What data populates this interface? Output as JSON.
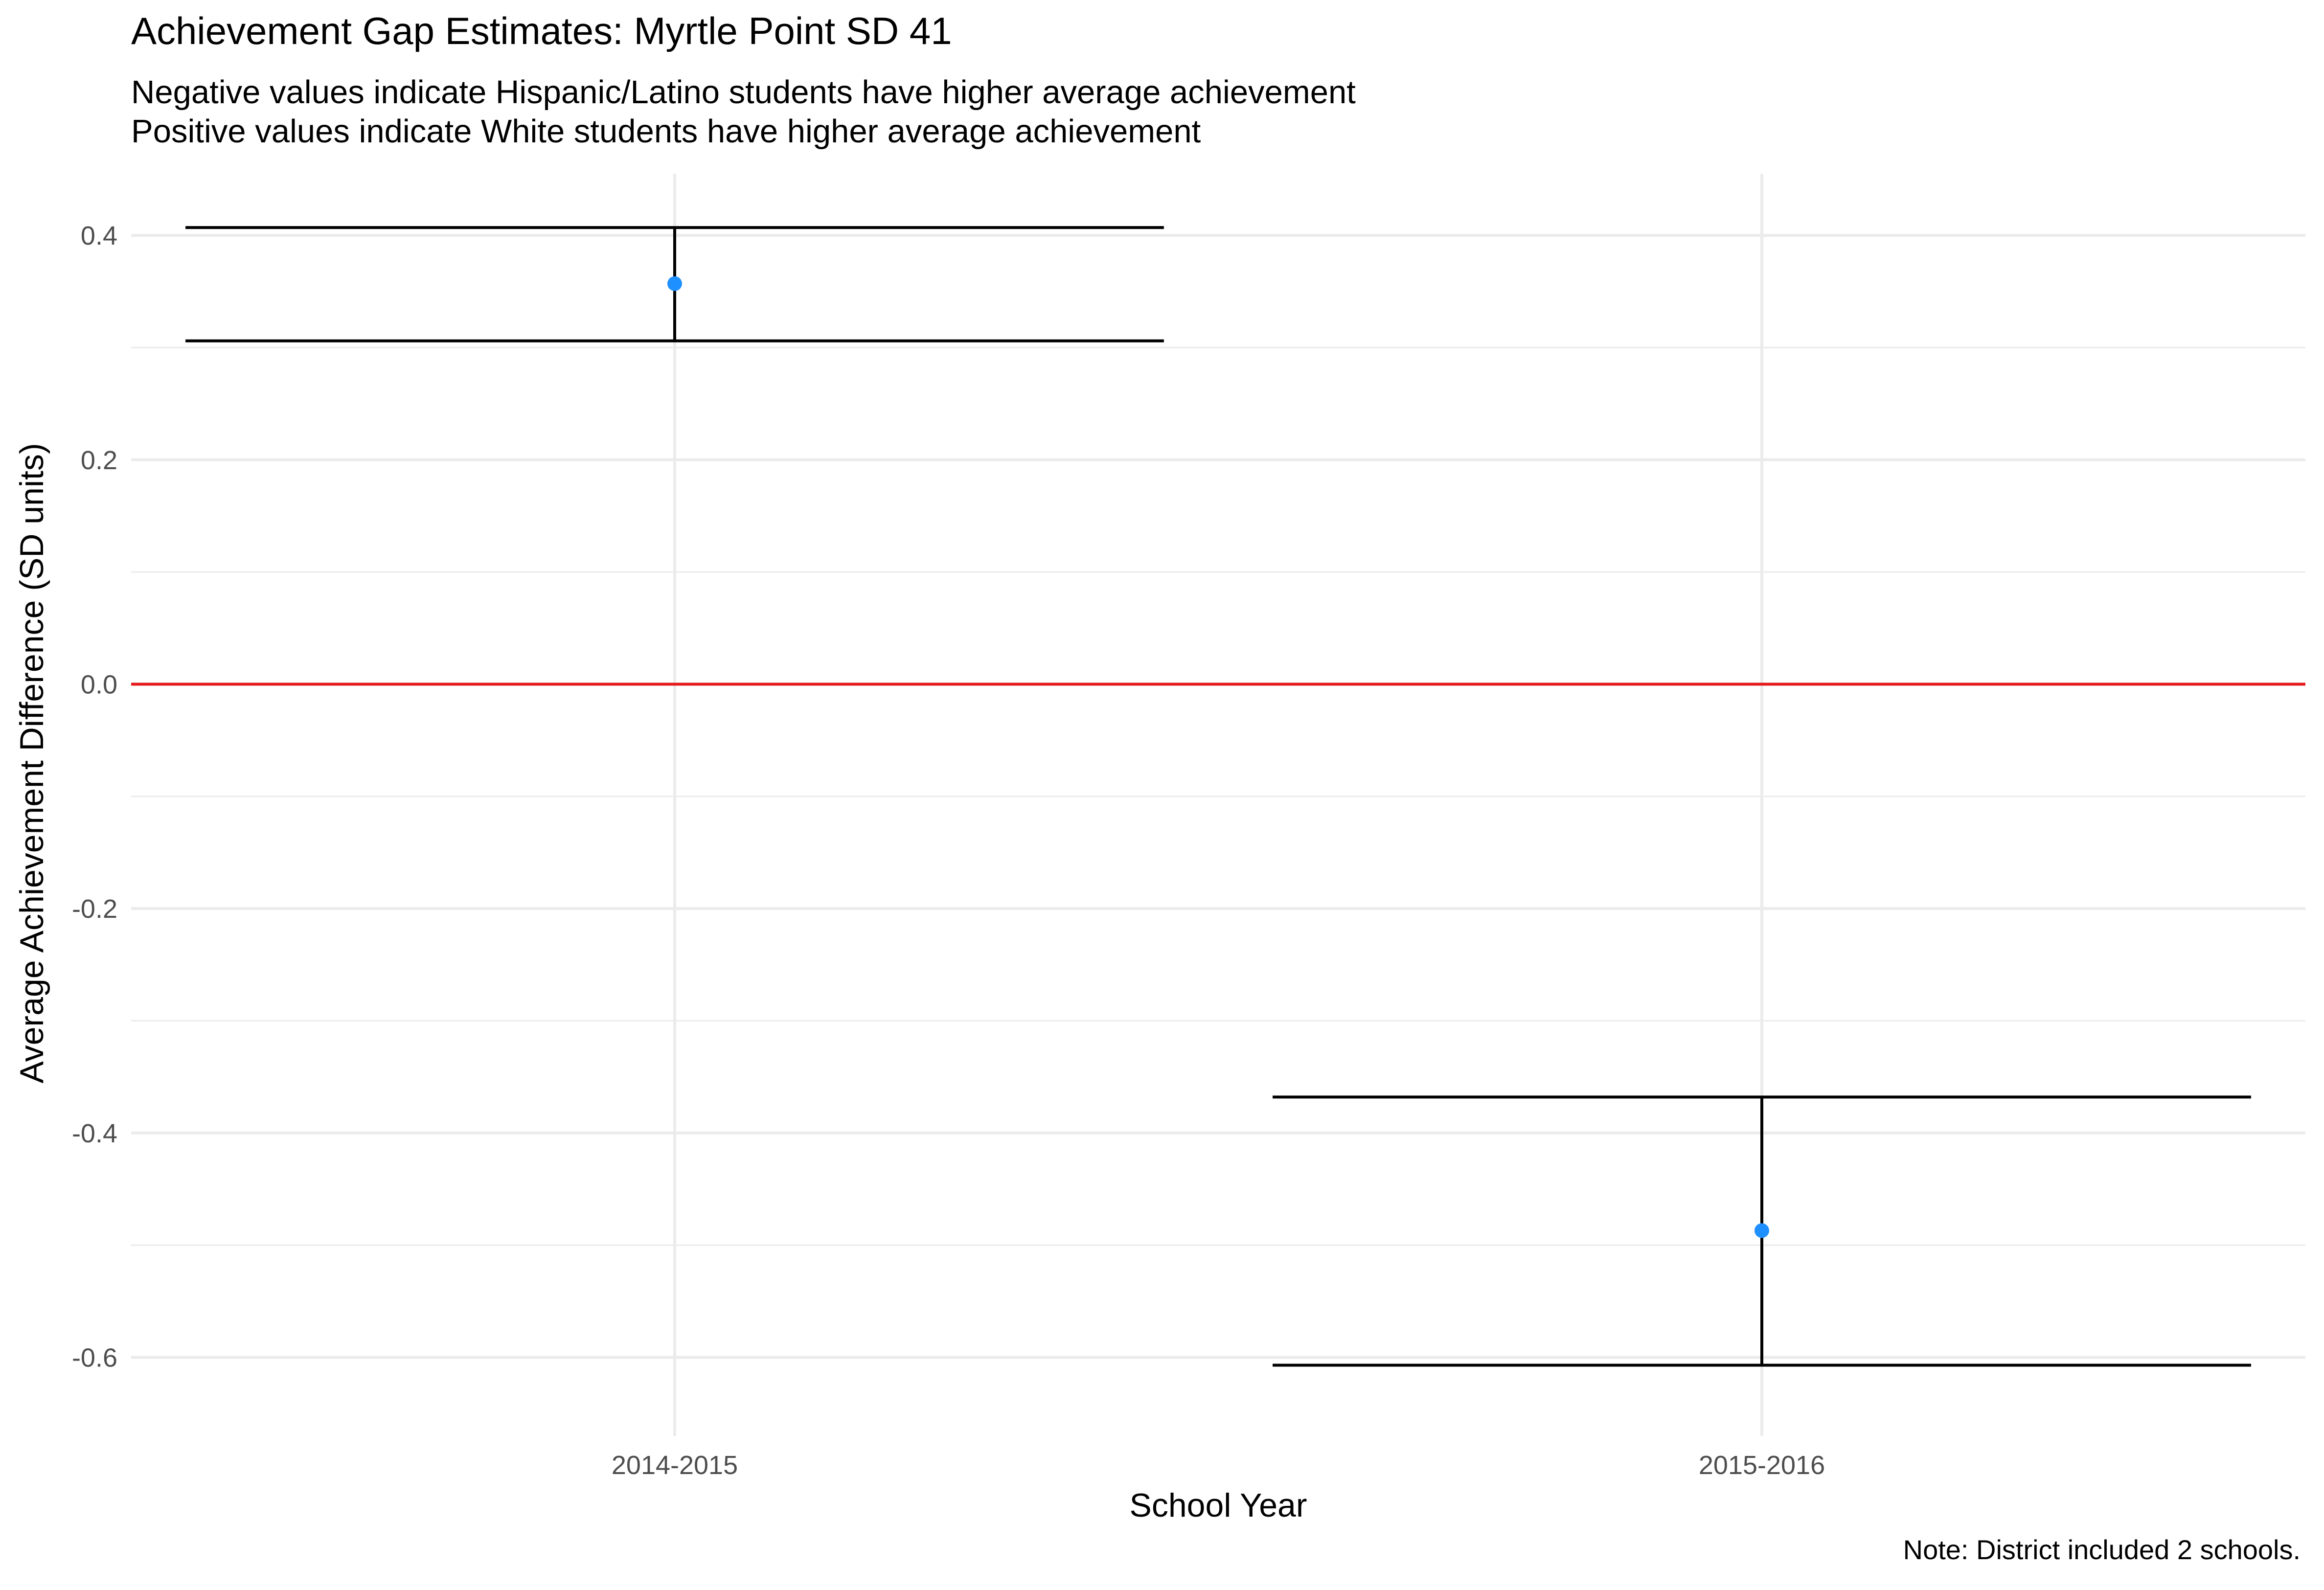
{
  "chart_data": {
    "type": "errorbar",
    "title": "Achievement Gap Estimates: Myrtle Point SD 41",
    "subtitle": [
      "Negative values indicate Hispanic/Latino students have higher average achievement",
      "Positive values indicate White students have higher average achievement"
    ],
    "caption": "Note: District included 2 schools.",
    "xlabel": "School Year",
    "ylabel": "Average Achievement Difference (SD units)",
    "categories": [
      "2014-2015",
      "2015-2016"
    ],
    "values": [
      0.357,
      -0.487
    ],
    "lower": [
      0.306,
      -0.607
    ],
    "upper": [
      0.407,
      -0.368
    ],
    "ylim": [
      -0.67,
      0.455
    ],
    "yticks": [
      0.4,
      0.2,
      0.0,
      -0.2,
      -0.4,
      -0.6
    ],
    "ytick_labels": [
      "0.4",
      "0.2",
      "0.0",
      "-0.2",
      "-0.4",
      "-0.6"
    ],
    "reference_line": 0,
    "grid": true,
    "legend": "none",
    "colors": {
      "point": "#1e90ff",
      "errorbar": "#000000",
      "reference_line": "#e41a1c",
      "grid": "#ebebeb"
    }
  }
}
